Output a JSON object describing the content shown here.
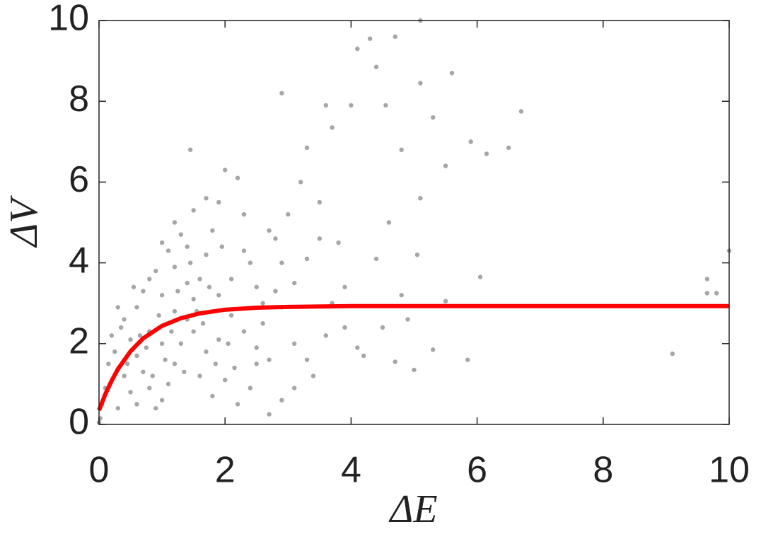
{
  "chart_data": {
    "type": "scatter",
    "xlabel": "ΔE",
    "ylabel": "ΔV",
    "xlim": [
      0,
      10
    ],
    "ylim": [
      0,
      10
    ],
    "xticks": [
      0,
      2,
      4,
      6,
      8,
      10
    ],
    "yticks": [
      0,
      2,
      4,
      6,
      8,
      10
    ],
    "grid": false,
    "box": true,
    "series": [
      {
        "mode": "markers",
        "color": "#a6a6a6",
        "x": [
          5.1,
          4.7,
          4.3,
          4.1,
          2.9,
          5.6,
          4.4,
          6.7,
          6.5,
          6.15,
          10,
          9.65,
          9.65,
          9.8,
          9.1,
          5.85,
          6.05,
          5.5,
          1.45,
          5.3,
          5.3,
          5.1,
          4.55,
          3.6,
          3.3,
          4.0,
          3.7,
          5.5,
          4.8,
          5.9,
          5.1,
          5.05,
          4.6,
          4.4,
          4.8,
          4.9,
          5.0,
          4.7,
          4.2,
          4.5,
          3.8,
          3.5,
          3.2,
          3.0,
          2.8,
          3.9,
          3.6,
          3.4,
          3.1,
          2.9,
          2.7,
          2.5,
          2.6,
          2.4,
          2.3,
          2.2,
          2.0,
          1.9,
          1.8,
          1.7,
          1.6,
          1.5,
          1.4,
          1.3,
          1.2,
          1.1,
          1.0,
          0.9,
          0.8,
          0.7,
          0.6,
          0.5,
          0.4,
          0.3,
          0.2,
          0.15,
          0.1,
          0.05,
          0.02,
          0.0,
          0.3,
          0.5,
          0.7,
          0.9,
          1.1,
          1.3,
          1.5,
          1.7,
          1.9,
          2.1,
          2.3,
          2.5,
          2.7,
          2.9,
          3.1,
          3.3,
          3.5,
          3.7,
          3.9,
          4.1,
          1.0,
          1.2,
          1.4,
          1.6,
          1.8,
          2.0,
          2.2,
          2.4,
          2.6,
          2.8,
          0.6,
          0.8,
          1.0,
          1.2,
          1.4,
          0.4,
          0.6,
          0.8,
          1.0,
          1.2,
          1.5,
          1.7,
          1.9,
          2.1,
          2.3,
          2.5,
          2.7,
          2.9,
          3.1,
          3.3,
          0.25,
          0.35,
          0.45,
          0.55,
          0.65,
          0.75,
          0.85,
          0.95,
          1.05,
          1.15,
          1.25,
          1.35,
          1.45,
          1.55,
          1.65,
          1.75,
          1.85,
          1.95,
          2.05,
          2.15
        ],
        "values": [
          10,
          9.6,
          9.55,
          9.3,
          8.2,
          8.7,
          8.85,
          7.75,
          6.85,
          6.7,
          4.3,
          3.6,
          3.25,
          3.25,
          1.75,
          1.6,
          3.65,
          3.05,
          6.8,
          1.85,
          7.6,
          8.45,
          7.9,
          7.9,
          6.85,
          7.9,
          7.35,
          6.4,
          6.8,
          7.0,
          5.6,
          4.2,
          5.0,
          4.1,
          3.2,
          2.6,
          1.35,
          1.55,
          1.7,
          2.4,
          4.5,
          5.5,
          6.0,
          5.2,
          4.6,
          3.4,
          2.2,
          1.2,
          0.9,
          0.6,
          0.25,
          1.5,
          3.0,
          4.0,
          5.2,
          6.1,
          6.3,
          5.5,
          4.8,
          4.2,
          3.6,
          3.1,
          2.6,
          2.0,
          1.5,
          1.0,
          0.6,
          0.4,
          0.9,
          1.3,
          1.7,
          2.1,
          2.6,
          2.9,
          2.2,
          1.5,
          0.9,
          0.5,
          0.15,
          0.05,
          0.4,
          0.8,
          3.3,
          3.8,
          4.3,
          4.7,
          5.3,
          5.6,
          3.2,
          2.7,
          2.3,
          1.9,
          1.6,
          2.9,
          3.5,
          4.1,
          4.6,
          3.0,
          2.4,
          1.9,
          2.0,
          2.8,
          3.5,
          1.2,
          0.7,
          1.1,
          0.5,
          0.9,
          2.5,
          3.3,
          2.9,
          2.3,
          3.2,
          3.9,
          4.4,
          1.2,
          0.5,
          3.6,
          4.5,
          5.0,
          2.3,
          1.8,
          2.1,
          3.6,
          4.3,
          3.4,
          4.8,
          4.0,
          2.0,
          1.6,
          1.8,
          2.4,
          1.5,
          3.4,
          2.2,
          1.9,
          1.2,
          2.7,
          1.6,
          2.3,
          3.3,
          1.3,
          4.0,
          2.8,
          2.5,
          3.4,
          1.5,
          4.4,
          2.0,
          1.4
        ]
      },
      {
        "mode": "lines",
        "color": "#ff0000",
        "x": [
          0,
          0.1,
          0.2,
          0.3,
          0.5,
          0.7,
          1,
          1.3,
          1.6,
          2,
          2.5,
          3,
          4,
          6,
          10
        ],
        "values": [
          0.35,
          0.75,
          1.08,
          1.37,
          1.81,
          2.13,
          2.44,
          2.63,
          2.75,
          2.84,
          2.89,
          2.91,
          2.93,
          2.93,
          2.93
        ]
      }
    ]
  }
}
